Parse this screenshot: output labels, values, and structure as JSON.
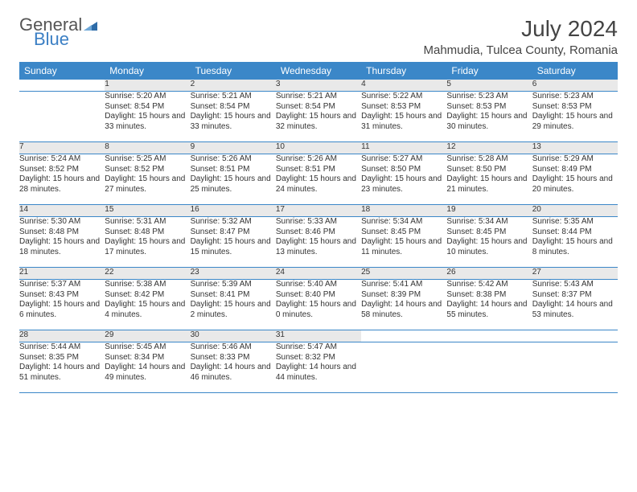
{
  "brand": {
    "part1": "General",
    "part2": "Blue"
  },
  "title": "July 2024",
  "location": "Mahmudia, Tulcea County, Romania",
  "colors": {
    "header_bg": "#3b87c8",
    "header_text": "#ffffff",
    "daynum_bg": "#e9e9e9",
    "text": "#333333",
    "rule": "#3b87c8",
    "brand_gray": "#555555",
    "brand_blue": "#3b7fc4",
    "page_bg": "#ffffff"
  },
  "fonts": {
    "body_pt": 10,
    "daynum_pt": 11,
    "header_pt": 12,
    "title_pt": 28,
    "location_pt": 15
  },
  "weekdays": [
    "Sunday",
    "Monday",
    "Tuesday",
    "Wednesday",
    "Thursday",
    "Friday",
    "Saturday"
  ],
  "weeks": [
    [
      null,
      {
        "n": "1",
        "sr": "Sunrise: 5:20 AM",
        "ss": "Sunset: 8:54 PM",
        "dl": "Daylight: 15 hours and 33 minutes."
      },
      {
        "n": "2",
        "sr": "Sunrise: 5:21 AM",
        "ss": "Sunset: 8:54 PM",
        "dl": "Daylight: 15 hours and 33 minutes."
      },
      {
        "n": "3",
        "sr": "Sunrise: 5:21 AM",
        "ss": "Sunset: 8:54 PM",
        "dl": "Daylight: 15 hours and 32 minutes."
      },
      {
        "n": "4",
        "sr": "Sunrise: 5:22 AM",
        "ss": "Sunset: 8:53 PM",
        "dl": "Daylight: 15 hours and 31 minutes."
      },
      {
        "n": "5",
        "sr": "Sunrise: 5:23 AM",
        "ss": "Sunset: 8:53 PM",
        "dl": "Daylight: 15 hours and 30 minutes."
      },
      {
        "n": "6",
        "sr": "Sunrise: 5:23 AM",
        "ss": "Sunset: 8:53 PM",
        "dl": "Daylight: 15 hours and 29 minutes."
      }
    ],
    [
      {
        "n": "7",
        "sr": "Sunrise: 5:24 AM",
        "ss": "Sunset: 8:52 PM",
        "dl": "Daylight: 15 hours and 28 minutes."
      },
      {
        "n": "8",
        "sr": "Sunrise: 5:25 AM",
        "ss": "Sunset: 8:52 PM",
        "dl": "Daylight: 15 hours and 27 minutes."
      },
      {
        "n": "9",
        "sr": "Sunrise: 5:26 AM",
        "ss": "Sunset: 8:51 PM",
        "dl": "Daylight: 15 hours and 25 minutes."
      },
      {
        "n": "10",
        "sr": "Sunrise: 5:26 AM",
        "ss": "Sunset: 8:51 PM",
        "dl": "Daylight: 15 hours and 24 minutes."
      },
      {
        "n": "11",
        "sr": "Sunrise: 5:27 AM",
        "ss": "Sunset: 8:50 PM",
        "dl": "Daylight: 15 hours and 23 minutes."
      },
      {
        "n": "12",
        "sr": "Sunrise: 5:28 AM",
        "ss": "Sunset: 8:50 PM",
        "dl": "Daylight: 15 hours and 21 minutes."
      },
      {
        "n": "13",
        "sr": "Sunrise: 5:29 AM",
        "ss": "Sunset: 8:49 PM",
        "dl": "Daylight: 15 hours and 20 minutes."
      }
    ],
    [
      {
        "n": "14",
        "sr": "Sunrise: 5:30 AM",
        "ss": "Sunset: 8:48 PM",
        "dl": "Daylight: 15 hours and 18 minutes."
      },
      {
        "n": "15",
        "sr": "Sunrise: 5:31 AM",
        "ss": "Sunset: 8:48 PM",
        "dl": "Daylight: 15 hours and 17 minutes."
      },
      {
        "n": "16",
        "sr": "Sunrise: 5:32 AM",
        "ss": "Sunset: 8:47 PM",
        "dl": "Daylight: 15 hours and 15 minutes."
      },
      {
        "n": "17",
        "sr": "Sunrise: 5:33 AM",
        "ss": "Sunset: 8:46 PM",
        "dl": "Daylight: 15 hours and 13 minutes."
      },
      {
        "n": "18",
        "sr": "Sunrise: 5:34 AM",
        "ss": "Sunset: 8:45 PM",
        "dl": "Daylight: 15 hours and 11 minutes."
      },
      {
        "n": "19",
        "sr": "Sunrise: 5:34 AM",
        "ss": "Sunset: 8:45 PM",
        "dl": "Daylight: 15 hours and 10 minutes."
      },
      {
        "n": "20",
        "sr": "Sunrise: 5:35 AM",
        "ss": "Sunset: 8:44 PM",
        "dl": "Daylight: 15 hours and 8 minutes."
      }
    ],
    [
      {
        "n": "21",
        "sr": "Sunrise: 5:37 AM",
        "ss": "Sunset: 8:43 PM",
        "dl": "Daylight: 15 hours and 6 minutes."
      },
      {
        "n": "22",
        "sr": "Sunrise: 5:38 AM",
        "ss": "Sunset: 8:42 PM",
        "dl": "Daylight: 15 hours and 4 minutes."
      },
      {
        "n": "23",
        "sr": "Sunrise: 5:39 AM",
        "ss": "Sunset: 8:41 PM",
        "dl": "Daylight: 15 hours and 2 minutes."
      },
      {
        "n": "24",
        "sr": "Sunrise: 5:40 AM",
        "ss": "Sunset: 8:40 PM",
        "dl": "Daylight: 15 hours and 0 minutes."
      },
      {
        "n": "25",
        "sr": "Sunrise: 5:41 AM",
        "ss": "Sunset: 8:39 PM",
        "dl": "Daylight: 14 hours and 58 minutes."
      },
      {
        "n": "26",
        "sr": "Sunrise: 5:42 AM",
        "ss": "Sunset: 8:38 PM",
        "dl": "Daylight: 14 hours and 55 minutes."
      },
      {
        "n": "27",
        "sr": "Sunrise: 5:43 AM",
        "ss": "Sunset: 8:37 PM",
        "dl": "Daylight: 14 hours and 53 minutes."
      }
    ],
    [
      {
        "n": "28",
        "sr": "Sunrise: 5:44 AM",
        "ss": "Sunset: 8:35 PM",
        "dl": "Daylight: 14 hours and 51 minutes."
      },
      {
        "n": "29",
        "sr": "Sunrise: 5:45 AM",
        "ss": "Sunset: 8:34 PM",
        "dl": "Daylight: 14 hours and 49 minutes."
      },
      {
        "n": "30",
        "sr": "Sunrise: 5:46 AM",
        "ss": "Sunset: 8:33 PM",
        "dl": "Daylight: 14 hours and 46 minutes."
      },
      {
        "n": "31",
        "sr": "Sunrise: 5:47 AM",
        "ss": "Sunset: 8:32 PM",
        "dl": "Daylight: 14 hours and 44 minutes."
      },
      null,
      null,
      null
    ]
  ]
}
